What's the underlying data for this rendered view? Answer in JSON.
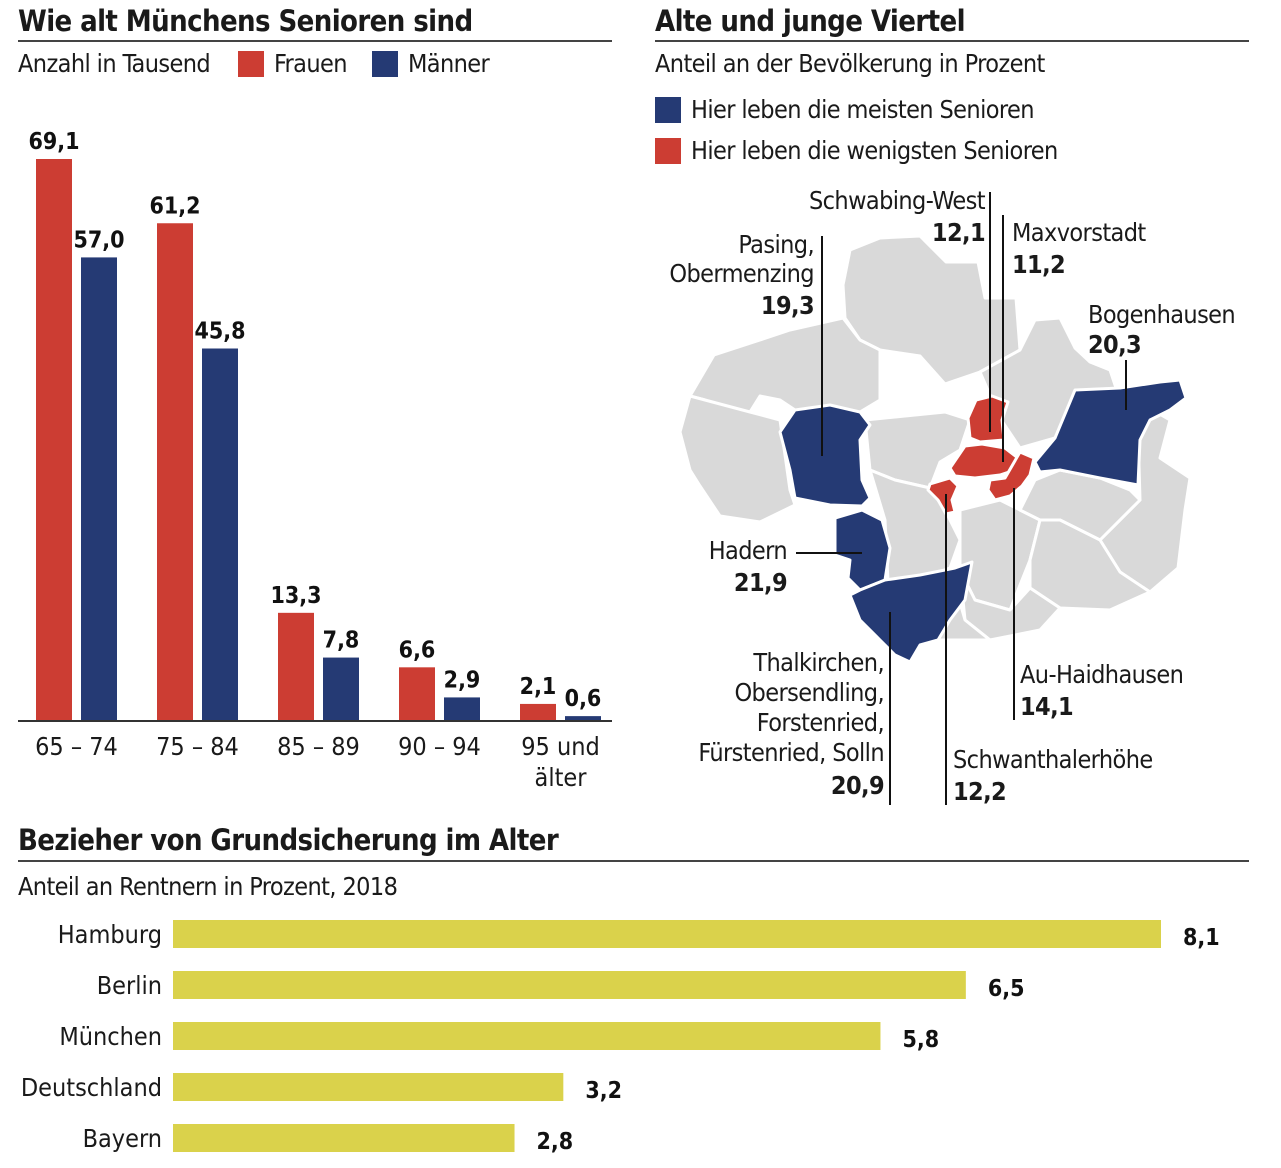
{
  "colors": {
    "frauen": "#cc3d33",
    "maenner": "#253a74",
    "map_gray": "#d9d9d9",
    "yellow": "#dad24b",
    "rule": "#444444"
  },
  "left": {
    "title": "Wie alt Münchens Senioren sind",
    "subtitle": "Anzahl in Tausend",
    "legend_frauen": "Frauen",
    "legend_maenner": "Männer"
  },
  "right": {
    "title": "Alte und junge Viertel",
    "subtitle": "Anteil an der Bevölkerung in Prozent",
    "legend_most": "Hier leben die meisten Senioren",
    "legend_least": "Hier leben die wenigsten Senioren",
    "districts": {
      "schwabing_west": {
        "name": "Schwabing-West",
        "value": "12,1"
      },
      "maxvorstadt": {
        "name": "Maxvorstadt",
        "value": "11,2"
      },
      "pasing": {
        "name1": "Pasing,",
        "name2": "Obermenzing",
        "value": "19,3"
      },
      "bogenhausen": {
        "name": "Bogenhausen",
        "value": "20,3"
      },
      "hadern": {
        "name": "Hadern",
        "value": "21,9"
      },
      "thalkirchen": {
        "name1": "Thalkirchen,",
        "name2": "Obersendling,",
        "name3": "Forstenried,",
        "name4": "Fürstenried, Solln",
        "value": "20,9"
      },
      "au_haidhausen": {
        "name": "Au-Haidhausen",
        "value": "14,1"
      },
      "schwanthalerhoehe": {
        "name": "Schwanthalerhöhe",
        "value": "12,2"
      }
    }
  },
  "bottom": {
    "title": "Bezieher von Grundsicherung im Alter",
    "subtitle": "Anteil an Rentnern in Prozent, 2018"
  },
  "chart_data": [
    {
      "type": "bar",
      "title": "Wie alt Münchens Senioren sind",
      "subtitle": "Anzahl in Tausend",
      "categories": [
        "65 – 74",
        "75 – 84",
        "85 – 89",
        "90 – 94",
        "95 und älter"
      ],
      "series": [
        {
          "name": "Frauen",
          "values": [
            69.1,
            61.2,
            13.3,
            6.6,
            2.1
          ],
          "labels": [
            "69,1",
            "61,2",
            "13,3",
            "6,6",
            "2,1"
          ]
        },
        {
          "name": "Männer",
          "values": [
            57.0,
            45.8,
            7.8,
            2.9,
            0.6
          ],
          "labels": [
            "57,0",
            "45,8",
            "7,8",
            "2,9",
            "0,6"
          ]
        }
      ],
      "grid": false
    },
    {
      "type": "bar",
      "orientation": "horizontal",
      "title": "Bezieher von Grundsicherung im Alter",
      "subtitle": "Anteil an Rentnern in Prozent, 2018",
      "categories": [
        "Hamburg",
        "Berlin",
        "München",
        "Deutschland",
        "Bayern"
      ],
      "values": [
        8.1,
        6.5,
        5.8,
        3.2,
        2.8
      ],
      "labels": [
        "8,1",
        "6,5",
        "5,8",
        "3,2",
        "2,8"
      ],
      "grid": false
    }
  ]
}
